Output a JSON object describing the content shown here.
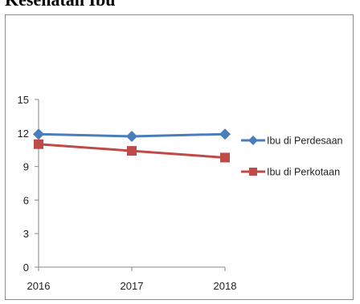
{
  "heading_fragment": "Kesehatan Ibu",
  "chart_data": {
    "type": "line",
    "x": [
      "2016",
      "2017",
      "2018"
    ],
    "ylim": [
      0,
      15
    ],
    "yticks": [
      "0",
      "3",
      "6",
      "9",
      "12",
      "15"
    ],
    "grid": false,
    "legend": "right",
    "series": [
      {
        "name": "Ibu di Perdesaan",
        "values": [
          11.9,
          11.7,
          11.9
        ],
        "color": "#4a7ebb",
        "marker": "diamond"
      },
      {
        "name": "Ibu di Perkotaan",
        "values": [
          11.0,
          10.4,
          9.8
        ],
        "color": "#be4b48",
        "marker": "square"
      }
    ]
  }
}
